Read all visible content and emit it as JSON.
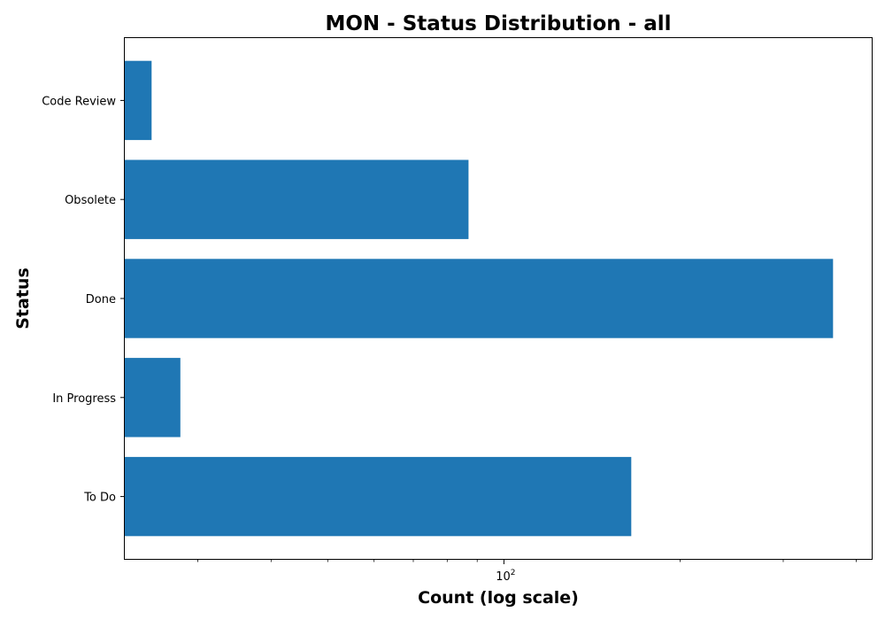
{
  "chart_data": {
    "type": "bar",
    "orientation": "horizontal",
    "title": "MON - Status Distribution - all",
    "xlabel": "Count (log scale)",
    "ylabel": "Status",
    "x_scale": "log",
    "xlim": [
      22.5,
      425
    ],
    "categories": [
      "To Do",
      "In Progress",
      "Done",
      "Obsolete",
      "Code Review"
    ],
    "values": [
      165,
      28,
      365,
      87,
      25
    ],
    "color": "#1f77b4",
    "x_major_tick": {
      "value": 100,
      "base": "10",
      "exponent": "2"
    },
    "grid": false,
    "legend": "none"
  }
}
